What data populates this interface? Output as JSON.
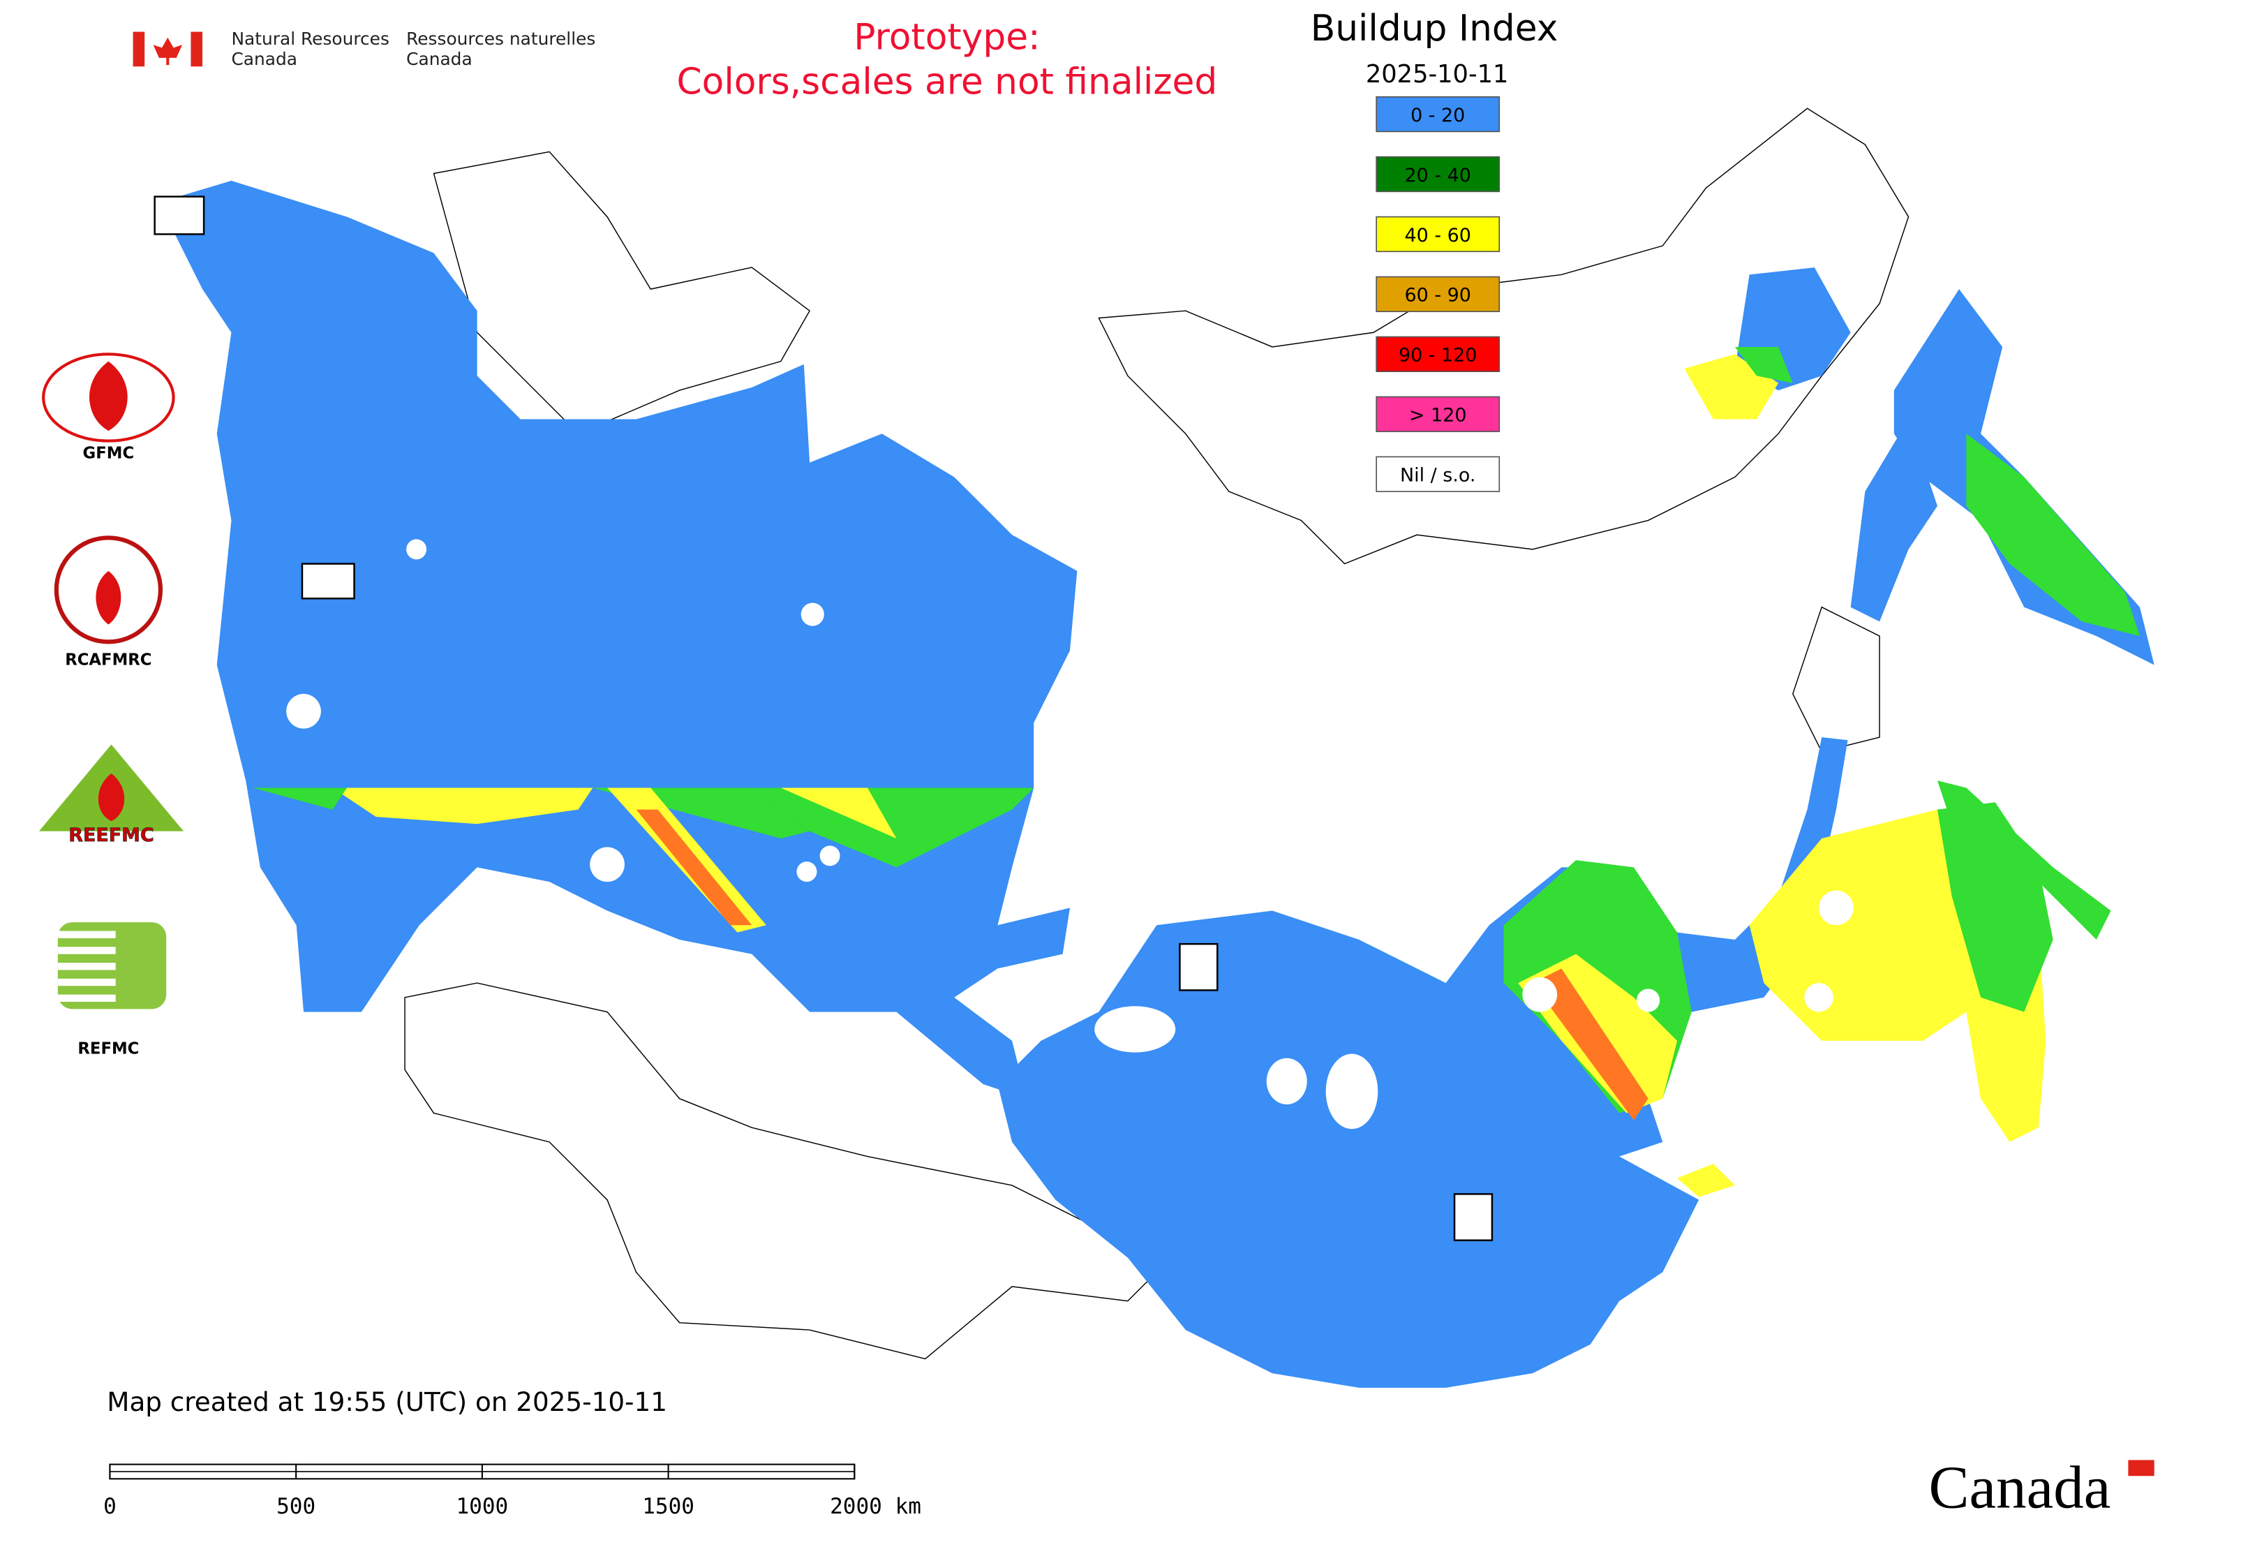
{
  "header": {
    "agency_en": [
      "Natural Resources",
      "Canada"
    ],
    "agency_fr": [
      "Ressources naturelles",
      "Canada"
    ],
    "notice": [
      "Prototype:",
      "Colors,scales are not finalized"
    ]
  },
  "legend": {
    "title": "Buildup Index",
    "date": "2025-10-11",
    "items": [
      {
        "label": "0 - 20",
        "color": "#3a8ef5"
      },
      {
        "label": "20 - 40",
        "color": "#008000"
      },
      {
        "label": "40 - 60",
        "color": "#ffff00"
      },
      {
        "label": "60 - 90",
        "color": "#e0a000"
      },
      {
        "label": "90 - 120",
        "color": "#ff0000"
      },
      {
        "label": "> 120",
        "color": "#ff3399"
      },
      {
        "label": "Nil / s.o.",
        "color": "#ffffff"
      }
    ]
  },
  "logos": [
    {
      "label": "GFMC"
    },
    {
      "label": "RCAFMRC"
    },
    {
      "label": "REEFMC"
    },
    {
      "label": "REFMC"
    }
  ],
  "footer": {
    "created": "Map created at 19:55 (UTC) on 2025-10-11",
    "wordmark": "Canada"
  },
  "scale": {
    "ticks": [
      0,
      500,
      1000,
      1500,
      {
        "value": 2000,
        "label": "2000 km"
      }
    ]
  }
}
